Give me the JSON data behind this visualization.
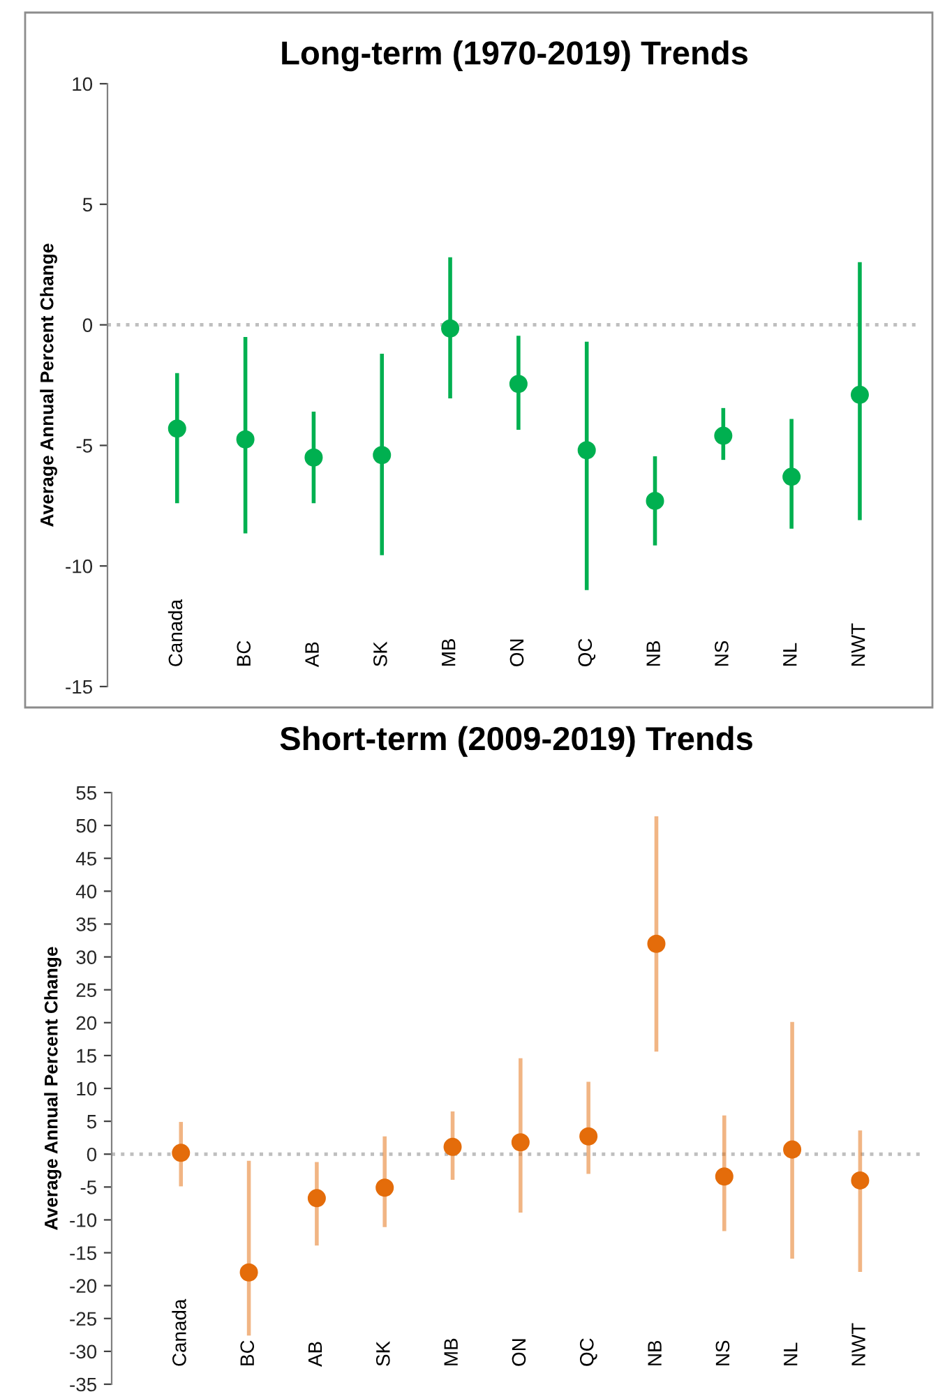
{
  "chart_data": [
    {
      "type": "scatter",
      "title": "Long-term (1970-2019) Trends",
      "ylabel": "Average Annual Percent Change",
      "categories": [
        "Canada",
        "BC",
        "AB",
        "SK",
        "MB",
        "ON",
        "QC",
        "NB",
        "NS",
        "NL",
        "NWT"
      ],
      "series": [
        {
          "color": "#00b050",
          "values": [
            -4.3,
            -4.75,
            -5.5,
            -5.4,
            -0.15,
            -2.45,
            -5.2,
            -7.3,
            -4.6,
            -6.3,
            -2.9
          ],
          "errors": [
            [
              -7.4,
              -2.0
            ],
            [
              -8.65,
              -0.5
            ],
            [
              -7.4,
              -3.6
            ],
            [
              -9.55,
              -1.2
            ],
            [
              -3.05,
              2.8
            ],
            [
              -4.35,
              -0.45
            ],
            [
              -11.0,
              -0.7
            ],
            [
              -9.15,
              -5.45
            ],
            [
              -5.6,
              -3.45
            ],
            [
              -8.45,
              -3.9
            ],
            [
              -8.1,
              2.6
            ]
          ]
        }
      ],
      "ylim": [
        -15,
        10
      ],
      "yticks": [
        -15,
        -10,
        -5,
        0,
        5,
        10
      ],
      "ref_lines": [
        {
          "axis": "y",
          "value": 0,
          "color": "#bfbfbf",
          "line_style": "dotted"
        }
      ],
      "marker": "circle"
    },
    {
      "type": "scatter",
      "title": "Short-term (2009-2019) Trends",
      "ylabel": "Average Annual Percent Change",
      "categories": [
        "Canada",
        "BC",
        "AB",
        "SK",
        "MB",
        "ON",
        "QC",
        "NB",
        "NS",
        "NL",
        "NWT"
      ],
      "series": [
        {
          "color": "#e46c0a",
          "values": [
            0.2,
            -18.0,
            -6.7,
            -5.1,
            1.1,
            1.8,
            2.7,
            32.0,
            -3.4,
            0.7,
            -4.0
          ],
          "errors": [
            [
              -4.9,
              4.9
            ],
            [
              -27.6,
              -1.0
            ],
            [
              -13.9,
              -1.2
            ],
            [
              -11.1,
              2.7
            ],
            [
              -3.9,
              6.5
            ],
            [
              -8.9,
              14.6
            ],
            [
              -3.0,
              11.0
            ],
            [
              15.6,
              51.4
            ],
            [
              -11.7,
              5.9
            ],
            [
              -15.9,
              20.1
            ],
            [
              -17.9,
              3.6
            ]
          ]
        }
      ],
      "ylim": [
        -35,
        55
      ],
      "yticks": [
        -35,
        -30,
        -25,
        -20,
        -15,
        -10,
        -5,
        0,
        5,
        10,
        15,
        20,
        25,
        30,
        35,
        40,
        45,
        50,
        55
      ],
      "ref_lines": [
        {
          "axis": "y",
          "value": 0,
          "color": "#bfbfbf",
          "line_style": "dotted"
        }
      ],
      "marker": "circle"
    }
  ]
}
